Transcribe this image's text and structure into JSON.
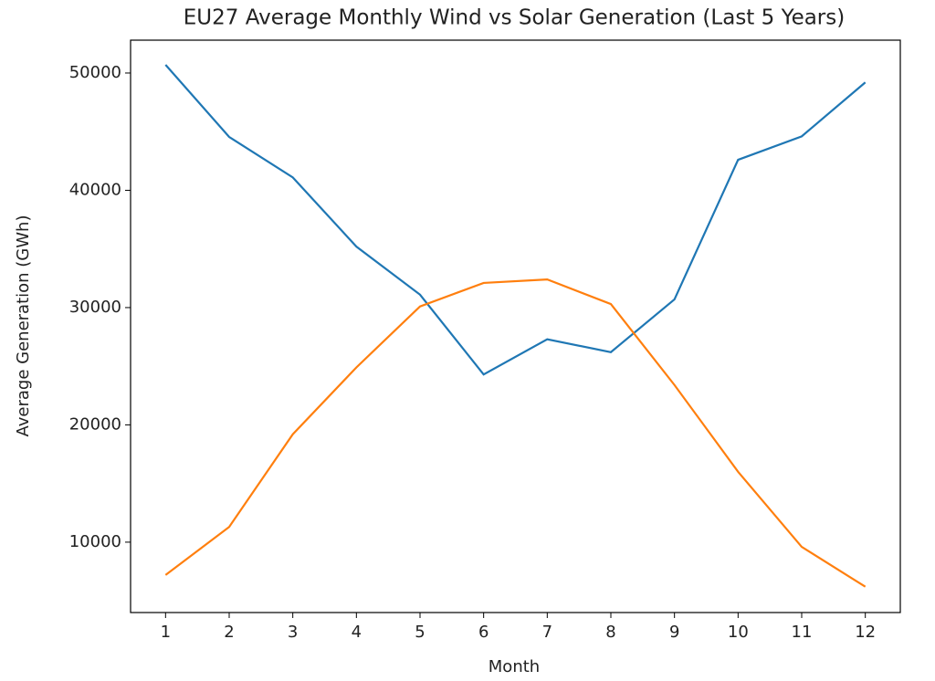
{
  "chart_data": {
    "type": "line",
    "title": "EU27 Average Monthly Wind vs Solar Generation (Last 5 Years)",
    "x_label": "Month",
    "y_label": "Average Generation (GWh)",
    "x": [
      1,
      2,
      3,
      4,
      5,
      6,
      7,
      8,
      9,
      10,
      11,
      12
    ],
    "series": [
      {
        "color": "#1f77b4",
        "values": [
          50700,
          44550,
          41100,
          35200,
          31100,
          24300,
          27300,
          26200,
          30700,
          42600,
          44600,
          49200
        ]
      },
      {
        "color": "#ff7f0e",
        "values": [
          7200,
          11300,
          19200,
          24900,
          30100,
          32100,
          32400,
          30300,
          23400,
          16000,
          9600,
          6200
        ]
      }
    ],
    "xlim": [
      0.45,
      12.55
    ],
    "xticks": [
      1,
      2,
      3,
      4,
      5,
      6,
      7,
      8,
      9,
      10,
      11,
      12
    ],
    "ylim": [
      4000,
      52800
    ],
    "yticks": [
      10000,
      20000,
      30000,
      40000,
      50000
    ],
    "grid": false
  }
}
